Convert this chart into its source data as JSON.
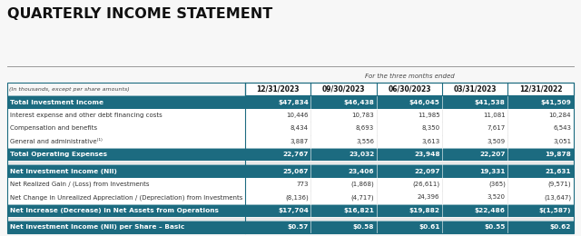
{
  "title": "QUARTERLY INCOME STATEMENT",
  "subtitle": "For the three months ended",
  "header_note": "(In thousands, except per share amounts)",
  "columns": [
    "12/31/2023",
    "09/30/2023",
    "06/30/2023",
    "03/31/2023",
    "12/31/2022"
  ],
  "rows": [
    {
      "label": "Total Investment Income",
      "values": [
        "$47,834",
        "$46,438",
        "$46,045",
        "$41,538",
        "$41,509"
      ],
      "style": "band"
    },
    {
      "label": "Interest expense and other debt financing costs",
      "values": [
        "10,446",
        "10,783",
        "11,985",
        "11,081",
        "10,284"
      ],
      "style": "normal"
    },
    {
      "label": "Compensation and benefits",
      "values": [
        "8,434",
        "8,693",
        "8,350",
        "7,617",
        "6,543"
      ],
      "style": "normal"
    },
    {
      "label": "General and administrative⁽¹⁾",
      "values": [
        "3,887",
        "3,556",
        "3,613",
        "3,509",
        "3,051"
      ],
      "style": "normal"
    },
    {
      "label": "Total Operating Expenses",
      "values": [
        "22,767",
        "23,032",
        "23,948",
        "22,207",
        "19,878"
      ],
      "style": "band"
    },
    {
      "label": "_spacer_",
      "values": [
        "",
        "",
        "",
        "",
        ""
      ],
      "style": "spacer"
    },
    {
      "label": "Net Investment Income (NII)",
      "values": [
        "25,067",
        "23,406",
        "22,097",
        "19,331",
        "21,631"
      ],
      "style": "band"
    },
    {
      "label": "Net Realized Gain / (Loss) from Investments",
      "values": [
        "773",
        "(1,868)",
        "(26,611)",
        "(365)",
        "(9,571)"
      ],
      "style": "normal"
    },
    {
      "label": "Net Change in Unrealized Appreciation / (Depreciation) from Investments",
      "values": [
        "(8,136)",
        "(4,717)",
        "24,396",
        "3,520",
        "(13,647)"
      ],
      "style": "normal"
    },
    {
      "label": "Net Increase (Decrease) in Net Assets from Operations",
      "values": [
        "$17,704",
        "$16,821",
        "$19,882",
        "$22,486",
        "$(1,587)"
      ],
      "style": "band"
    },
    {
      "label": "_spacer_",
      "values": [
        "",
        "",
        "",
        "",
        ""
      ],
      "style": "spacer"
    },
    {
      "label": "Net Investment Income (NII) per Share – Basic",
      "values": [
        "$0.57",
        "$0.58",
        "$0.61",
        "$0.55",
        "$0.62"
      ],
      "style": "band"
    }
  ],
  "band_bg": "#1c6b80",
  "band_text": "#ffffff",
  "normal_bg": "#ffffff",
  "normal_text": "#333333",
  "header_bg": "#1c6b80",
  "header_text": "#ffffff",
  "col_header_bg": "#ffffff",
  "col_header_text": "#222222",
  "col_header_border": "#1c6b80",
  "title_color": "#111111",
  "sep_color": "#cccccc",
  "bg_color": "#f7f7f7",
  "spacer_bg": "#f0f0f0",
  "note_color": "#444444"
}
